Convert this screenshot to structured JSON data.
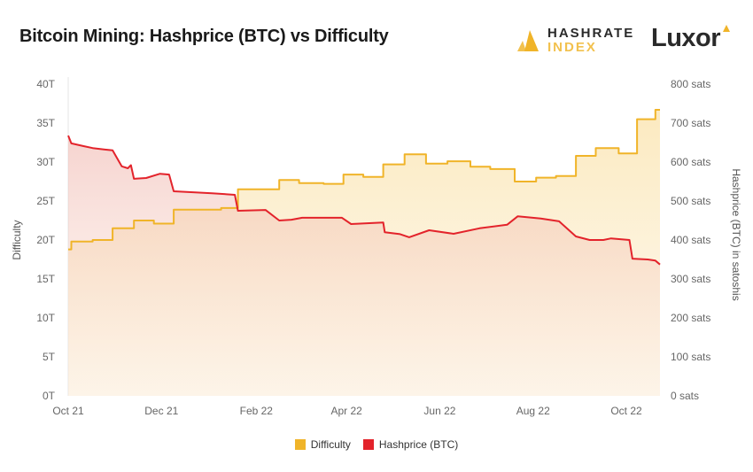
{
  "title": "Bitcoin Mining: Hashprice (BTC) vs Difficulty",
  "logos": {
    "hashrate_index": [
      "HASHRATE",
      "INDEX"
    ],
    "luxor": "Luxor"
  },
  "colors": {
    "difficulty": "#f0b429",
    "hashprice": "#e3232b"
  },
  "chart_data": {
    "type": "line",
    "title": "Bitcoin Mining: Hashprice (BTC) vs Difficulty",
    "x_ticks": [
      "Oct 21",
      "Dec 21",
      "Feb 22",
      "Apr 22",
      "Jun 22",
      "Aug 22",
      "Oct 22"
    ],
    "x_tick_dates": [
      "2021-10-01",
      "2021-12-01",
      "2022-02-01",
      "2022-04-01",
      "2022-06-01",
      "2022-08-01",
      "2022-10-01"
    ],
    "xlim": [
      "2021-10-01",
      "2022-10-23"
    ],
    "ylabel_left": "Difficulty",
    "ylabel_right": "Hashprice (BTC) in satoshis",
    "ylim_left": [
      0,
      40
    ],
    "ylim_right": [
      0,
      800
    ],
    "y_ticks_left": [
      "0T",
      "5T",
      "10T",
      "15T",
      "20T",
      "25T",
      "30T",
      "35T",
      "40T"
    ],
    "y_ticks_right": [
      "0 sats",
      "100 sats",
      "200 sats",
      "300 sats",
      "400 sats",
      "500 sats",
      "600 sats",
      "700 sats",
      "800 sats"
    ],
    "legend_position": "bottom",
    "series": [
      {
        "name": "Difficulty",
        "axis": "left",
        "unit": "T",
        "step": true,
        "points": [
          [
            "2021-10-01",
            18.8
          ],
          [
            "2021-10-03",
            19.8
          ],
          [
            "2021-10-17",
            20.0
          ],
          [
            "2021-10-30",
            21.5
          ],
          [
            "2021-11-13",
            22.5
          ],
          [
            "2021-11-26",
            22.1
          ],
          [
            "2021-12-09",
            23.9
          ],
          [
            "2022-01-09",
            24.1
          ],
          [
            "2022-01-20",
            26.5
          ],
          [
            "2022-02-16",
            27.7
          ],
          [
            "2022-03-01",
            27.3
          ],
          [
            "2022-03-17",
            27.2
          ],
          [
            "2022-03-30",
            28.4
          ],
          [
            "2022-04-12",
            28.1
          ],
          [
            "2022-04-25",
            29.7
          ],
          [
            "2022-05-09",
            31.0
          ],
          [
            "2022-05-23",
            29.8
          ],
          [
            "2022-06-06",
            30.1
          ],
          [
            "2022-06-21",
            29.4
          ],
          [
            "2022-07-04",
            29.1
          ],
          [
            "2022-07-20",
            27.5
          ],
          [
            "2022-08-03",
            28.0
          ],
          [
            "2022-08-16",
            28.2
          ],
          [
            "2022-08-29",
            30.8
          ],
          [
            "2022-09-11",
            31.8
          ],
          [
            "2022-09-26",
            31.1
          ],
          [
            "2022-10-08",
            35.5
          ],
          [
            "2022-10-20",
            36.7
          ],
          [
            "2022-10-23",
            36.7
          ]
        ]
      },
      {
        "name": "Hashprice (BTC)",
        "axis": "right",
        "unit": "sats",
        "step": false,
        "points": [
          [
            "2021-10-01",
            668
          ],
          [
            "2021-10-03",
            648
          ],
          [
            "2021-10-11",
            641
          ],
          [
            "2021-10-17",
            636
          ],
          [
            "2021-10-25",
            632
          ],
          [
            "2021-10-30",
            630
          ],
          [
            "2021-11-05",
            589
          ],
          [
            "2021-11-09",
            584
          ],
          [
            "2021-11-11",
            592
          ],
          [
            "2021-11-13",
            557
          ],
          [
            "2021-11-21",
            559
          ],
          [
            "2021-11-30",
            570
          ],
          [
            "2021-12-06",
            568
          ],
          [
            "2021-12-09",
            525
          ],
          [
            "2021-12-23",
            522
          ],
          [
            "2022-01-03",
            520
          ],
          [
            "2022-01-18",
            516
          ],
          [
            "2022-01-20",
            475
          ],
          [
            "2022-02-07",
            477
          ],
          [
            "2022-02-16",
            450
          ],
          [
            "2022-02-24",
            452
          ],
          [
            "2022-03-03",
            457
          ],
          [
            "2022-03-29",
            457
          ],
          [
            "2022-04-04",
            441
          ],
          [
            "2022-04-25",
            445
          ],
          [
            "2022-04-26",
            420
          ],
          [
            "2022-05-06",
            415
          ],
          [
            "2022-05-12",
            407
          ],
          [
            "2022-05-25",
            425
          ],
          [
            "2022-06-10",
            416
          ],
          [
            "2022-06-27",
            430
          ],
          [
            "2022-07-15",
            439
          ],
          [
            "2022-07-22",
            461
          ],
          [
            "2022-08-06",
            455
          ],
          [
            "2022-08-18",
            448
          ],
          [
            "2022-08-29",
            409
          ],
          [
            "2022-09-07",
            400
          ],
          [
            "2022-09-16",
            400
          ],
          [
            "2022-09-21",
            404
          ],
          [
            "2022-10-03",
            400
          ],
          [
            "2022-10-05",
            352
          ],
          [
            "2022-10-15",
            350
          ],
          [
            "2022-10-20",
            347
          ],
          [
            "2022-10-23",
            337
          ]
        ]
      }
    ]
  }
}
